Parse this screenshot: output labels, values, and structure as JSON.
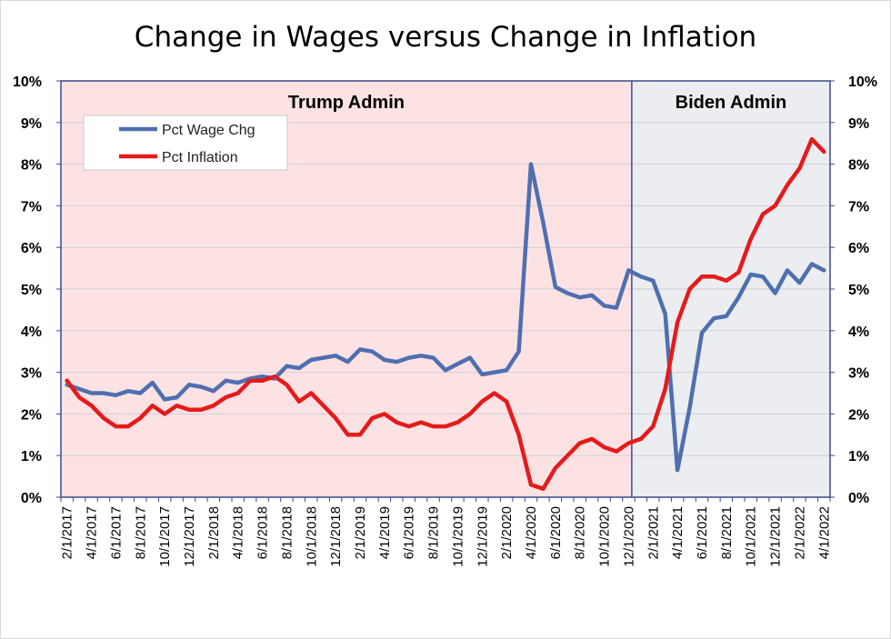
{
  "chart_data": {
    "type": "line",
    "title": "Change in Wages versus Change in Inflation",
    "xlabel": "",
    "ylabel": "",
    "ylim": [
      0,
      10
    ],
    "y_ticks": [
      "0%",
      "1%",
      "2%",
      "3%",
      "4%",
      "5%",
      "6%",
      "7%",
      "8%",
      "9%",
      "10%"
    ],
    "grid": true,
    "legend_position": "top-left",
    "x": [
      "2/1/2017",
      "3/1/2017",
      "4/1/2017",
      "5/1/2017",
      "6/1/2017",
      "7/1/2017",
      "8/1/2017",
      "9/1/2017",
      "10/1/2017",
      "11/1/2017",
      "12/1/2017",
      "1/1/2018",
      "2/1/2018",
      "3/1/2018",
      "4/1/2018",
      "5/1/2018",
      "6/1/2018",
      "7/1/2018",
      "8/1/2018",
      "9/1/2018",
      "10/1/2018",
      "11/1/2018",
      "12/1/2018",
      "1/1/2019",
      "2/1/2019",
      "3/1/2019",
      "4/1/2019",
      "5/1/2019",
      "6/1/2019",
      "7/1/2019",
      "8/1/2019",
      "9/1/2019",
      "10/1/2019",
      "11/1/2019",
      "12/1/2019",
      "1/1/2020",
      "2/1/2020",
      "3/1/2020",
      "4/1/2020",
      "5/1/2020",
      "6/1/2020",
      "7/1/2020",
      "8/1/2020",
      "9/1/2020",
      "10/1/2020",
      "11/1/2020",
      "12/1/2020",
      "1/1/2021",
      "2/1/2021",
      "3/1/2021",
      "4/1/2021",
      "5/1/2021",
      "6/1/2021",
      "7/1/2021",
      "8/1/2021",
      "9/1/2021",
      "10/1/2021",
      "11/1/2021",
      "12/1/2021",
      "1/1/2022",
      "2/1/2022",
      "3/1/2022",
      "4/1/2022"
    ],
    "x_tick_labels": [
      "2/1/2017",
      "4/1/2017",
      "6/1/2017",
      "8/1/2017",
      "10/1/2017",
      "12/1/2017",
      "2/1/2018",
      "4/1/2018",
      "6/1/2018",
      "8/1/2018",
      "10/1/2018",
      "12/1/2018",
      "2/1/2019",
      "4/1/2019",
      "6/1/2019",
      "8/1/2019",
      "10/1/2019",
      "12/1/2019",
      "2/1/2020",
      "4/1/2020",
      "6/1/2020",
      "8/1/2020",
      "10/1/2020",
      "12/1/2020",
      "2/1/2021",
      "4/1/2021",
      "6/1/2021",
      "8/1/2021",
      "10/1/2021",
      "12/1/2021",
      "2/1/2022",
      "4/1/2022"
    ],
    "series": [
      {
        "name": "Pct Wage Chg",
        "color": "#4f6fb0",
        "values": [
          2.7,
          2.6,
          2.5,
          2.5,
          2.45,
          2.55,
          2.5,
          2.75,
          2.35,
          2.4,
          2.7,
          2.65,
          2.55,
          2.8,
          2.75,
          2.85,
          2.9,
          2.85,
          3.15,
          3.1,
          3.3,
          3.35,
          3.4,
          3.25,
          3.55,
          3.5,
          3.3,
          3.25,
          3.35,
          3.4,
          3.35,
          3.05,
          3.2,
          3.35,
          2.95,
          3.0,
          3.05,
          3.5,
          8.0,
          6.6,
          5.05,
          4.9,
          4.8,
          4.85,
          4.6,
          4.55,
          5.45,
          5.3,
          5.2,
          4.4,
          0.65,
          2.15,
          3.95,
          4.3,
          4.35,
          4.8,
          5.35,
          5.3,
          4.9,
          5.45,
          5.15,
          5.6,
          5.45
        ]
      },
      {
        "name": "Pct Inflation",
        "color": "#e51b1b",
        "values": [
          2.8,
          2.4,
          2.2,
          1.9,
          1.7,
          1.7,
          1.9,
          2.2,
          2.0,
          2.2,
          2.1,
          2.1,
          2.2,
          2.4,
          2.5,
          2.8,
          2.8,
          2.9,
          2.7,
          2.3,
          2.5,
          2.2,
          1.9,
          1.5,
          1.5,
          1.9,
          2.0,
          1.8,
          1.7,
          1.8,
          1.7,
          1.7,
          1.8,
          2.0,
          2.3,
          2.5,
          2.3,
          1.5,
          0.3,
          0.2,
          0.7,
          1.0,
          1.3,
          1.4,
          1.2,
          1.1,
          1.3,
          1.4,
          1.7,
          2.6,
          4.2,
          5.0,
          5.3,
          5.3,
          5.2,
          5.4,
          6.2,
          6.8,
          7.0,
          7.5,
          7.9,
          8.6,
          8.3
        ]
      }
    ],
    "regions": [
      {
        "label": "Trump Admin",
        "start": "2/1/2017",
        "end": "1/1/2021",
        "color": "#fde2e4"
      },
      {
        "label": "Biden Admin",
        "start": "1/1/2021",
        "end": "4/1/2022",
        "color": "#ebedf0"
      }
    ]
  }
}
